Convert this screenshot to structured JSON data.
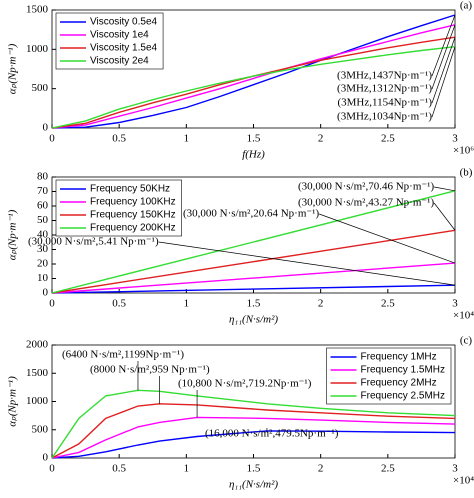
{
  "chart_data": [
    {
      "type": "line",
      "panel_label": "(a)",
      "x_label": "f(Hz)",
      "y_label": "αₚ(Np·m⁻¹)",
      "x_exponent": "×10⁶",
      "x": [
        0,
        250000,
        500000,
        750000,
        1000000,
        1250000,
        1500000,
        1750000,
        2000000,
        2250000,
        2500000,
        2750000,
        3000000
      ],
      "xlim": [
        0,
        3000000
      ],
      "xticks": [
        0,
        {
          "value": 500000,
          "label": "0.5"
        },
        {
          "value": 1000000,
          "label": "1"
        },
        {
          "value": 1500000,
          "label": "1.5"
        },
        {
          "value": 2000000,
          "label": "2"
        },
        {
          "value": 2500000,
          "label": "2.5"
        },
        {
          "value": 3000000,
          "label": "3"
        }
      ],
      "ylim": [
        0,
        1500
      ],
      "yticks": [
        0,
        500,
        1000,
        1500
      ],
      "legend": "upper left",
      "series": [
        {
          "name": "Viscosity 0.5e4",
          "color": "#0000ff",
          "values": [
            0,
            10,
            70,
            160,
            260,
            400,
            550,
            700,
            860,
            1010,
            1160,
            1300,
            1437
          ]
        },
        {
          "name": "Viscosity 1e4",
          "color": "#ff00ff",
          "values": [
            0,
            40,
            150,
            260,
            380,
            500,
            630,
            760,
            880,
            990,
            1100,
            1210,
            1312
          ]
        },
        {
          "name": "Viscosity 1.5e4",
          "color": "#e02020",
          "values": [
            0,
            60,
            200,
            320,
            430,
            550,
            660,
            760,
            860,
            940,
            1020,
            1090,
            1154
          ]
        },
        {
          "name": "Viscosity 2e4",
          "color": "#33dd33",
          "values": [
            0,
            90,
            240,
            360,
            470,
            570,
            660,
            740,
            810,
            870,
            930,
            985,
            1034
          ]
        }
      ],
      "annotations": [
        {
          "text": "(3MHz,1437Np·m⁻¹)"
        },
        {
          "text": "(3MHz,1312Np·m⁻¹)"
        },
        {
          "text": "(3MHz,1154Np·m⁻¹)"
        },
        {
          "text": "(3MHz,1034Np·m⁻¹)"
        }
      ]
    },
    {
      "type": "line",
      "panel_label": "(b)",
      "x_label": "η₁₁(N·s/m²)",
      "y_label": "αₚ(Np·m⁻¹)",
      "x_exponent": "×10⁴",
      "x": [
        0,
        15000,
        30000
      ],
      "xlim": [
        0,
        30000
      ],
      "xticks": [
        0,
        {
          "value": 5000,
          "label": "0.5"
        },
        {
          "value": 10000,
          "label": "1"
        },
        {
          "value": 15000,
          "label": "1.5"
        },
        {
          "value": 20000,
          "label": "2"
        },
        {
          "value": 25000,
          "label": "2.5"
        },
        {
          "value": 30000,
          "label": "3"
        }
      ],
      "ylim": [
        0,
        80
      ],
      "yticks": [
        0,
        10,
        20,
        30,
        40,
        50,
        60,
        70,
        80
      ],
      "legend": "upper left",
      "series": [
        {
          "name": "Frequency 50KHz",
          "color": "#0000ff",
          "values": [
            0,
            2.7,
            5.41
          ]
        },
        {
          "name": "Frequency 100KHz",
          "color": "#ff00ff",
          "values": [
            0,
            10.3,
            20.64
          ]
        },
        {
          "name": "Frequency 150KHz",
          "color": "#e02020",
          "values": [
            0,
            21.6,
            43.27
          ]
        },
        {
          "name": "Frequency 200KHz",
          "color": "#33dd33",
          "values": [
            0,
            35.2,
            70.46
          ]
        }
      ],
      "annotations": [
        {
          "text": "(30,000 N·s/m²,70.46 Np·m⁻¹)"
        },
        {
          "text": "(30,000 N·s/m²,43.27 Np·m⁻¹)"
        },
        {
          "text": "(30,000 N·s/m²,20.64 Np·m⁻¹)"
        },
        {
          "text": "(30,000 N·s/m²,5.41 Np·m⁻¹)"
        }
      ]
    },
    {
      "type": "line",
      "panel_label": "(c)",
      "x_label": "η₁₁(N·s/m²)",
      "y_label": "αₚ(Np·m⁻¹)",
      "x_exponent": "×10⁴",
      "x": [
        0,
        2000,
        4000,
        6400,
        8000,
        10800,
        16000,
        20000,
        25000,
        30000
      ],
      "xlim": [
        0,
        30000
      ],
      "xticks": [
        0,
        {
          "value": 5000,
          "label": "0.5"
        },
        {
          "value": 10000,
          "label": "1"
        },
        {
          "value": 15000,
          "label": "1.5"
        },
        {
          "value": 20000,
          "label": "2"
        },
        {
          "value": 25000,
          "label": "2.5"
        },
        {
          "value": 30000,
          "label": "3"
        }
      ],
      "ylim": [
        0,
        2000
      ],
      "yticks": [
        0,
        500,
        1000,
        1500,
        2000
      ],
      "legend": "upper right",
      "series": [
        {
          "name": "Frequency 1MHz",
          "color": "#0000ff",
          "values": [
            0,
            30,
            110,
            230,
            300,
            380,
            479.5,
            475,
            460,
            450
          ]
        },
        {
          "name": "Frequency 1.5MHz",
          "color": "#ff00ff",
          "values": [
            0,
            100,
            320,
            550,
            630,
            719.2,
            700,
            670,
            630,
            600
          ]
        },
        {
          "name": "Frequency 2MHz",
          "color": "#e02020",
          "values": [
            0,
            250,
            700,
            920,
            959,
            940,
            850,
            800,
            740,
            700
          ]
        },
        {
          "name": "Frequency 2.5MHz",
          "color": "#33dd33",
          "values": [
            0,
            700,
            1100,
            1199,
            1180,
            1100,
            960,
            880,
            800,
            750
          ]
        }
      ],
      "annotations": [
        {
          "text": "(6400 N·s/m²,1199Np·m⁻¹)"
        },
        {
          "text": "(8000 N·s/m²,959 Np·m⁻¹)"
        },
        {
          "text": "(10,800 N·s/m²,719.2Np·m⁻¹)"
        },
        {
          "text": "(16,000 N·s/m²,479.5Np·m⁻¹)"
        }
      ]
    }
  ]
}
